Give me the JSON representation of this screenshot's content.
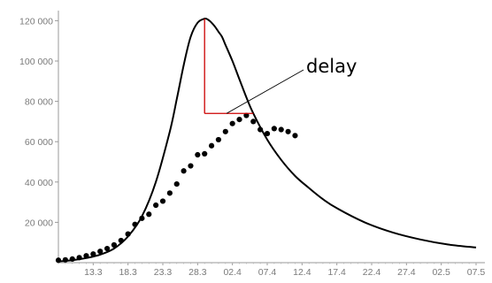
{
  "chart_data": {
    "type": "scatter",
    "title": "",
    "xlabel": "",
    "ylabel": "",
    "x_tick_labels": [
      "13.3",
      "18.3",
      "23.3",
      "28.3",
      "02.4",
      "07.4",
      "12.4",
      "17.4",
      "22.4",
      "27.4",
      "02.5",
      "07.5"
    ],
    "y_ticks": [
      {
        "value": 20000,
        "label": "20 000"
      },
      {
        "value": 40000,
        "label": "40 000"
      },
      {
        "value": 60000,
        "label": "60 000"
      },
      {
        "value": 80000,
        "label": "80 000"
      },
      {
        "value": 100000,
        "label": "100 000"
      },
      {
        "value": 120000,
        "label": "120 000"
      }
    ],
    "ylim": [
      0,
      125000
    ],
    "x_axis_day_range": [
      0,
      60
    ],
    "grid": false,
    "series": [
      {
        "kind": "line",
        "color": "#000000",
        "x_day_offset": [
          0,
          2,
          4,
          6,
          8,
          10,
          12,
          14,
          16,
          17,
          18,
          19,
          20,
          21,
          21.5,
          22,
          22.5,
          23,
          23.5,
          24,
          25,
          26,
          27,
          28,
          30,
          32,
          34,
          36,
          38,
          40,
          44,
          48,
          52,
          56,
          60
        ],
        "y": [
          600,
          1200,
          2300,
          4000,
          7000,
          13000,
          23000,
          40000,
          65000,
          81000,
          98000,
          112000,
          119000,
          121000,
          120500,
          119000,
          117000,
          114500,
          112000,
          108000,
          100000,
          91000,
          82000,
          74000,
          61000,
          51000,
          43000,
          37000,
          31500,
          27000,
          20000,
          15000,
          11500,
          9000,
          7500
        ]
      },
      {
        "kind": "scatter",
        "color": "#000000",
        "x_day_offset": [
          0,
          1,
          2,
          3,
          4,
          5,
          6,
          7,
          8,
          9,
          10,
          11,
          12,
          13,
          14,
          15,
          16,
          17,
          18,
          19,
          20,
          21,
          22,
          23,
          24,
          25,
          26,
          27,
          28,
          29,
          30,
          31,
          32,
          33,
          34
        ],
        "y": [
          1200,
          1400,
          1800,
          2500,
          3400,
          4300,
          5600,
          7000,
          8800,
          11000,
          14200,
          19000,
          22000,
          24000,
          28500,
          30500,
          34500,
          39000,
          45500,
          48000,
          53500,
          54000,
          58000,
          61000,
          65000,
          69000,
          71000,
          73000,
          70000,
          66000,
          64000,
          66500,
          66000,
          65000,
          63000
        ]
      }
    ],
    "annotation": {
      "text": "delay",
      "color": "#cc0000",
      "peak_day_offset": 21,
      "peak_value": 121000,
      "level_value": 74000,
      "end_day_offset": 28
    }
  }
}
